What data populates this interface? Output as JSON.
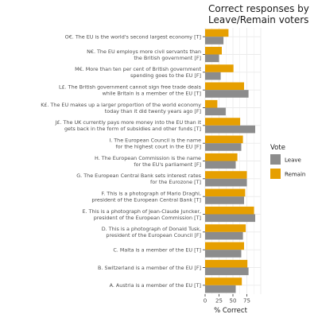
{
  "chart_data": {
    "type": "bar",
    "orientation": "horizontal",
    "title": "Correct responses by Leave/Remain voters",
    "xlabel": "% Correct",
    "ylabel": "",
    "xlim": [
      0,
      100
    ],
    "xticks": [
      0,
      25,
      50,
      75
    ],
    "grid": true,
    "legend": {
      "title": "Vote",
      "placement": "right"
    },
    "colors": {
      "Leave": "#8c8c8c",
      "Remain": "#e69f00"
    },
    "categories": [
      {
        "lines": [
          "O€. The EU is the world's second largest economy [T]"
        ]
      },
      {
        "lines": [
          "N€. The EU employs more civil servants than",
          "the British government [F]"
        ]
      },
      {
        "lines": [
          "M€. More than ten per cent of British government",
          "spending goes to the EU [F]"
        ]
      },
      {
        "lines": [
          "L£. The British government cannot sign free trade deals",
          "while Britain is a member of the EU [T]"
        ]
      },
      {
        "lines": [
          "K£. The EU makes up a larger proportion of the world economy",
          "today than it did twenty years ago [F]"
        ]
      },
      {
        "lines": [
          "J£. The UK currently pays more money into the EU than it",
          "gets back in the form of subsidies and other funds [T]"
        ]
      },
      {
        "lines": [
          "I. The European Council is the name",
          "for the highest court in the EU [F]"
        ]
      },
      {
        "lines": [
          "H. The European Commission is the name",
          "for the EU's parliament [F]"
        ]
      },
      {
        "lines": [
          "G. The European Central Bank sets interest rates",
          "for the Eurozone [T]"
        ]
      },
      {
        "lines": [
          "F. This is a photograph of Mario Draghi,",
          "president of the European Central Bank [T]"
        ]
      },
      {
        "lines": [
          "E. This is a photograph of Jean-Claude Juncker,",
          "president of the European Commission [T]"
        ]
      },
      {
        "lines": [
          "D. This is a photograph of Donald Tusk,",
          "president of the European Council [F]"
        ]
      },
      {
        "lines": [
          "C. Malta is a member of the EU [T]"
        ]
      },
      {
        "lines": [
          "B. Switzerland is a member of the EU [F]"
        ]
      },
      {
        "lines": [
          "A. Austria is a member of the EU [T]"
        ]
      }
    ],
    "series": [
      {
        "name": "Leave",
        "values": [
          33,
          25,
          28,
          78,
          37,
          90,
          65,
          55,
          75,
          70,
          90,
          68,
          65,
          78,
          55
        ]
      },
      {
        "name": "Remain",
        "values": [
          42,
          30,
          51,
          70,
          22,
          63,
          68,
          58,
          75,
          72,
          88,
          73,
          70,
          76,
          66
        ]
      }
    ]
  }
}
